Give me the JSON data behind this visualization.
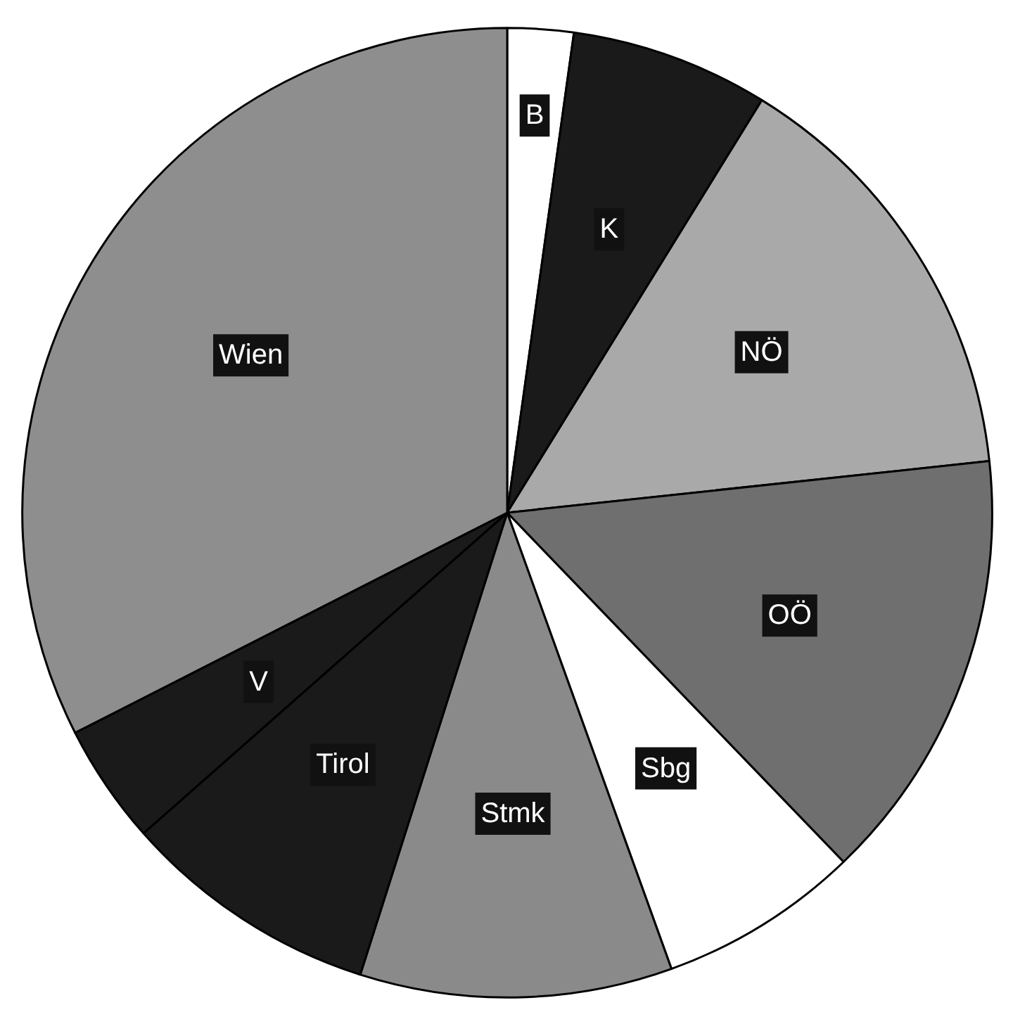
{
  "chart_data": {
    "type": "pie",
    "categories": [
      "B",
      "K",
      "NÖ",
      "OÖ",
      "Sbg",
      "Stmk",
      "Tirol",
      "V",
      "Wien"
    ],
    "values": [
      2.2,
      6.6,
      14.5,
      14.5,
      6.7,
      10.4,
      8.6,
      4.0,
      32.5
    ],
    "colors": [
      "#ffffff",
      "#1a1a1a",
      "#a9a9a9",
      "#6f6f6f",
      "#ffffff",
      "#8a8a8a",
      "#1a1a1a",
      "#1a1a1a",
      "#8e8e8e"
    ],
    "legend": false
  }
}
